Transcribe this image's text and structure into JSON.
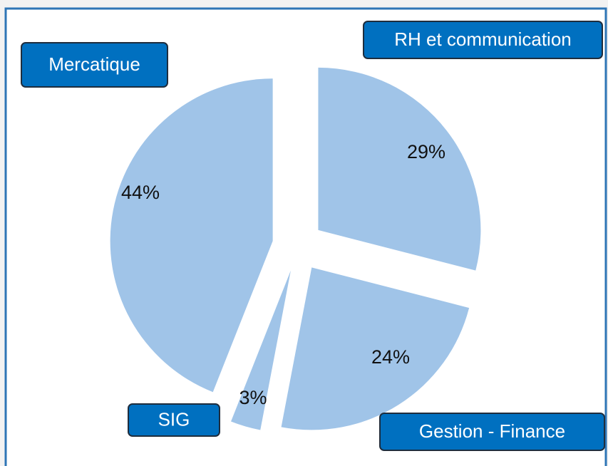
{
  "chart_data": {
    "type": "pie",
    "categories": [
      "RH et communication",
      "Gestion - Finance",
      "SIG",
      "Mercatique"
    ],
    "values": [
      29,
      24,
      3,
      44
    ],
    "value_labels": [
      "29%",
      "24%",
      "3%",
      "44%"
    ],
    "color": "#a0c4e8"
  }
}
